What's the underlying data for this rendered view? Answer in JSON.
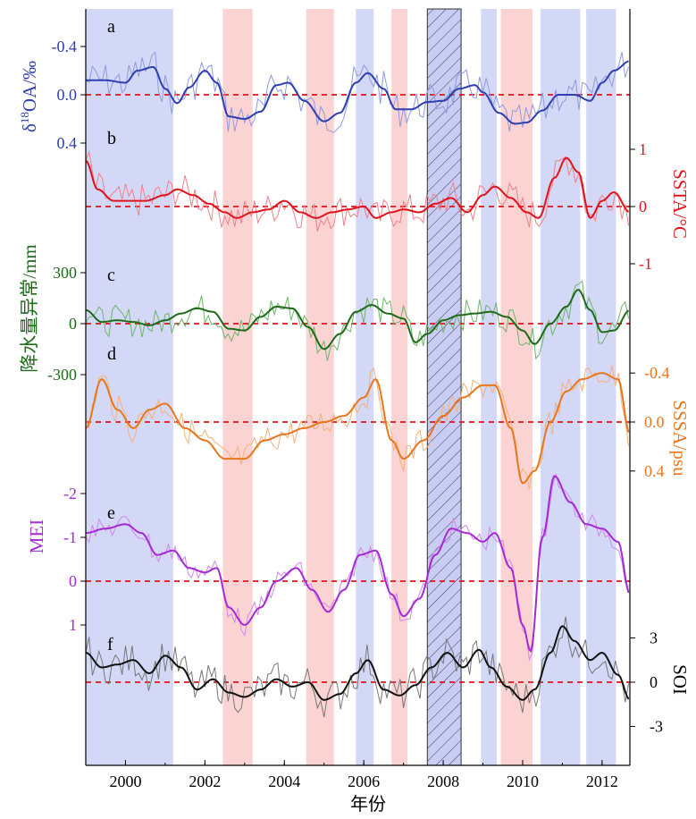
{
  "chart_data": {
    "type": "line",
    "xlabel": "年份",
    "xlim": [
      1999.0,
      2012.7
    ],
    "xticks": [
      "2000",
      "2002",
      "2004",
      "2006",
      "2008",
      "2010",
      "2012"
    ],
    "shading": {
      "blue": [
        [
          1999.0,
          2001.2
        ],
        [
          2005.8,
          2006.25
        ],
        [
          2008.95,
          2009.35
        ],
        [
          2010.45,
          2011.45
        ],
        [
          2011.6,
          2012.35
        ]
      ],
      "red": [
        [
          2002.45,
          2003.2
        ],
        [
          2004.55,
          2005.25
        ],
        [
          2006.7,
          2007.1
        ],
        [
          2009.45,
          2010.25
        ]
      ],
      "hatched": [
        [
          2007.6,
          2008.45
        ]
      ]
    },
    "panels": [
      {
        "label": "a",
        "ylabel_main": "δ",
        "ylabel_sup": "18",
        "ylabel_rest": "OA/‰",
        "axis_side": "left",
        "inverted": true,
        "ticks": [
          "-0.4",
          "0.0",
          "0.4"
        ],
        "tick_values": [
          -0.4,
          0.0,
          0.4
        ],
        "range": [
          -0.55,
          0.5
        ],
        "color": "#2d3fb2",
        "light": "#8f9ae0",
        "smooth": [
          [
            1999.0,
            -0.12
          ],
          [
            1999.5,
            -0.12
          ],
          [
            2000.0,
            -0.1
          ],
          [
            2000.3,
            -0.2
          ],
          [
            2000.7,
            -0.23
          ],
          [
            2001.0,
            -0.05
          ],
          [
            2001.3,
            0.07
          ],
          [
            2001.6,
            -0.06
          ],
          [
            2002.0,
            -0.2
          ],
          [
            2002.3,
            -0.1
          ],
          [
            2002.6,
            0.18
          ],
          [
            2003.0,
            0.2
          ],
          [
            2003.4,
            0.14
          ],
          [
            2003.8,
            -0.08
          ],
          [
            2004.1,
            -0.1
          ],
          [
            2004.5,
            0.05
          ],
          [
            2005.0,
            0.22
          ],
          [
            2005.4,
            0.15
          ],
          [
            2005.8,
            -0.1
          ],
          [
            2006.1,
            -0.18
          ],
          [
            2006.5,
            -0.05
          ],
          [
            2006.8,
            0.12
          ],
          [
            2007.2,
            0.12
          ],
          [
            2007.6,
            0.06
          ],
          [
            2008.0,
            0.05
          ],
          [
            2008.4,
            -0.05
          ],
          [
            2008.8,
            -0.08
          ],
          [
            2009.0,
            -0.02
          ],
          [
            2009.4,
            0.15
          ],
          [
            2009.8,
            0.24
          ],
          [
            2010.1,
            0.23
          ],
          [
            2010.5,
            0.13
          ],
          [
            2010.9,
            0.0
          ],
          [
            2011.3,
            0.0
          ],
          [
            2011.7,
            0.05
          ],
          [
            2012.0,
            -0.1
          ],
          [
            2012.3,
            -0.2
          ],
          [
            2012.7,
            -0.28
          ]
        ],
        "raw_amp": 0.15
      },
      {
        "label": "b",
        "ylabel_main": "SSTA/°C",
        "axis_side": "right",
        "inverted": false,
        "ticks": [
          "1",
          "0",
          "-1"
        ],
        "tick_values": [
          1,
          0,
          -1
        ],
        "range": [
          -1.35,
          1.25
        ],
        "color": "#e0141b",
        "light": "#f0808a",
        "smooth": [
          [
            1999.0,
            0.8
          ],
          [
            1999.3,
            0.3
          ],
          [
            1999.7,
            0.1
          ],
          [
            2000.1,
            0.1
          ],
          [
            2000.5,
            0.1
          ],
          [
            2001.0,
            0.2
          ],
          [
            2001.3,
            0.3
          ],
          [
            2001.7,
            0.2
          ],
          [
            2002.1,
            0.05
          ],
          [
            2002.5,
            -0.1
          ],
          [
            2002.8,
            -0.2
          ],
          [
            2003.2,
            -0.1
          ],
          [
            2003.6,
            -0.05
          ],
          [
            2004.0,
            0.1
          ],
          [
            2004.4,
            -0.1
          ],
          [
            2004.8,
            -0.2
          ],
          [
            2005.2,
            -0.1
          ],
          [
            2005.6,
            -0.05
          ],
          [
            2006.0,
            0.0
          ],
          [
            2006.3,
            -0.2
          ],
          [
            2006.7,
            -0.1
          ],
          [
            2007.0,
            -0.05
          ],
          [
            2007.4,
            -0.1
          ],
          [
            2007.8,
            0.05
          ],
          [
            2008.2,
            0.15
          ],
          [
            2008.6,
            -0.1
          ],
          [
            2009.0,
            0.2
          ],
          [
            2009.3,
            0.35
          ],
          [
            2009.7,
            0.15
          ],
          [
            2010.1,
            -0.1
          ],
          [
            2010.4,
            -0.2
          ],
          [
            2010.8,
            0.5
          ],
          [
            2011.1,
            0.85
          ],
          [
            2011.4,
            0.6
          ],
          [
            2011.7,
            -0.2
          ],
          [
            2012.0,
            0.1
          ],
          [
            2012.3,
            0.25
          ],
          [
            2012.7,
            -0.1
          ]
        ],
        "raw_amp": 0.3
      },
      {
        "label": "c",
        "ylabel_main": "降水量异常/mm",
        "axis_side": "left",
        "inverted": false,
        "ticks": [
          "300",
          "0",
          "-300"
        ],
        "tick_values": [
          300,
          0,
          -300
        ],
        "range": [
          -330,
          330
        ],
        "color": "#1e6b1a",
        "light": "#6fb46a",
        "smooth": [
          [
            1999.0,
            80
          ],
          [
            1999.4,
            10
          ],
          [
            1999.8,
            20
          ],
          [
            2000.2,
            10
          ],
          [
            2000.6,
            -10
          ],
          [
            2001.0,
            20
          ],
          [
            2001.4,
            60
          ],
          [
            2001.8,
            90
          ],
          [
            2002.2,
            70
          ],
          [
            2002.6,
            -30
          ],
          [
            2003.0,
            -40
          ],
          [
            2003.4,
            40
          ],
          [
            2003.8,
            100
          ],
          [
            2004.2,
            90
          ],
          [
            2004.6,
            -20
          ],
          [
            2005.0,
            -150
          ],
          [
            2005.4,
            -60
          ],
          [
            2005.8,
            70
          ],
          [
            2006.2,
            110
          ],
          [
            2006.6,
            60
          ],
          [
            2007.0,
            30
          ],
          [
            2007.3,
            -110
          ],
          [
            2007.6,
            -60
          ],
          [
            2008.0,
            20
          ],
          [
            2008.4,
            50
          ],
          [
            2008.8,
            60
          ],
          [
            2009.2,
            70
          ],
          [
            2009.6,
            40
          ],
          [
            2010.0,
            -40
          ],
          [
            2010.3,
            -120
          ],
          [
            2010.7,
            0
          ],
          [
            2011.1,
            100
          ],
          [
            2011.4,
            200
          ],
          [
            2011.7,
            80
          ],
          [
            2012.0,
            -50
          ],
          [
            2012.3,
            -40
          ],
          [
            2012.7,
            80
          ]
        ],
        "raw_amp": 90
      },
      {
        "label": "d",
        "ylabel_main": "SSSA/psu",
        "axis_side": "right",
        "inverted": true,
        "ticks": [
          "-0.4",
          "0.0",
          "0.4"
        ],
        "tick_values": [
          -0.4,
          0.0,
          0.4
        ],
        "range": [
          -0.58,
          0.52
        ],
        "color": "#e8761e",
        "light": "#f3b27a",
        "smooth": [
          [
            1999.0,
            0.05
          ],
          [
            1999.4,
            -0.35
          ],
          [
            1999.8,
            -0.1
          ],
          [
            2000.2,
            0.05
          ],
          [
            2000.6,
            -0.1
          ],
          [
            2001.0,
            -0.15
          ],
          [
            2001.5,
            0.05
          ],
          [
            2002.0,
            0.15
          ],
          [
            2002.5,
            0.3
          ],
          [
            2003.0,
            0.3
          ],
          [
            2003.5,
            0.15
          ],
          [
            2004.0,
            0.1
          ],
          [
            2004.5,
            0.05
          ],
          [
            2005.0,
            0.0
          ],
          [
            2005.5,
            -0.05
          ],
          [
            2006.0,
            -0.2
          ],
          [
            2006.3,
            -0.35
          ],
          [
            2006.7,
            0.15
          ],
          [
            2007.0,
            0.3
          ],
          [
            2007.5,
            0.15
          ],
          [
            2008.0,
            -0.05
          ],
          [
            2008.5,
            -0.2
          ],
          [
            2009.0,
            -0.3
          ],
          [
            2009.3,
            -0.3
          ],
          [
            2009.7,
            0.05
          ],
          [
            2010.0,
            0.5
          ],
          [
            2010.3,
            0.4
          ],
          [
            2010.7,
            0.0
          ],
          [
            2011.1,
            -0.25
          ],
          [
            2011.5,
            -0.35
          ],
          [
            2012.0,
            -0.4
          ],
          [
            2012.4,
            -0.35
          ],
          [
            2012.7,
            0.1
          ]
        ],
        "raw_amp": 0.12
      },
      {
        "label": "e",
        "ylabel_main": "MEI",
        "axis_side": "left",
        "inverted": true,
        "ticks": [
          "-2",
          "-1",
          "0",
          "1"
        ],
        "tick_values": [
          -2,
          -1,
          0,
          1
        ],
        "range": [
          -2.3,
          1.4
        ],
        "color": "#a52ad4",
        "light": "#d088e8",
        "smooth": [
          [
            1999.0,
            -1.1
          ],
          [
            1999.5,
            -1.2
          ],
          [
            2000.0,
            -1.3
          ],
          [
            2000.4,
            -1.1
          ],
          [
            2000.8,
            -0.6
          ],
          [
            2001.2,
            -0.7
          ],
          [
            2001.6,
            -0.3
          ],
          [
            2002.0,
            -0.2
          ],
          [
            2002.3,
            -0.3
          ],
          [
            2002.6,
            0.6
          ],
          [
            2003.0,
            1.0
          ],
          [
            2003.4,
            0.6
          ],
          [
            2003.8,
            0.0
          ],
          [
            2004.3,
            -0.3
          ],
          [
            2004.7,
            0.2
          ],
          [
            2005.1,
            0.7
          ],
          [
            2005.5,
            0.2
          ],
          [
            2005.9,
            -0.6
          ],
          [
            2006.3,
            -0.7
          ],
          [
            2006.7,
            0.3
          ],
          [
            2007.0,
            0.8
          ],
          [
            2007.4,
            0.4
          ],
          [
            2007.8,
            -0.6
          ],
          [
            2008.2,
            -1.2
          ],
          [
            2008.6,
            -1.1
          ],
          [
            2009.0,
            -0.9
          ],
          [
            2009.3,
            -1.1
          ],
          [
            2009.7,
            -0.3
          ],
          [
            2010.0,
            1.0
          ],
          [
            2010.2,
            1.6
          ],
          [
            2010.5,
            -1.0
          ],
          [
            2010.8,
            -2.4
          ],
          [
            2011.2,
            -1.8
          ],
          [
            2011.6,
            -1.3
          ],
          [
            2012.0,
            -1.2
          ],
          [
            2012.4,
            -0.9
          ],
          [
            2012.7,
            0.3
          ]
        ],
        "raw_amp": 0.25
      },
      {
        "label": "f",
        "ylabel_main": "SOI",
        "axis_side": "right",
        "inverted": false,
        "ticks": [
          "3",
          "0",
          "-3"
        ],
        "tick_values": [
          3,
          0,
          -3
        ],
        "range": [
          -5.5,
          5.2
        ],
        "color": "#111111",
        "light": "#777777",
        "smooth": [
          [
            1999.0,
            2.0
          ],
          [
            1999.4,
            1.0
          ],
          [
            1999.8,
            1.2
          ],
          [
            2000.2,
            1.5
          ],
          [
            2000.6,
            0.6
          ],
          [
            2001.0,
            1.8
          ],
          [
            2001.4,
            1.0
          ],
          [
            2001.8,
            -0.5
          ],
          [
            2002.2,
            0.2
          ],
          [
            2002.6,
            -0.7
          ],
          [
            2003.0,
            -1.0
          ],
          [
            2003.4,
            -0.5
          ],
          [
            2003.8,
            0.2
          ],
          [
            2004.2,
            -0.3
          ],
          [
            2004.6,
            0.0
          ],
          [
            2005.0,
            -1.2
          ],
          [
            2005.4,
            -0.8
          ],
          [
            2005.8,
            0.6
          ],
          [
            2006.1,
            1.5
          ],
          [
            2006.5,
            -0.5
          ],
          [
            2006.9,
            -0.9
          ],
          [
            2007.3,
            -0.2
          ],
          [
            2007.7,
            1.0
          ],
          [
            2008.1,
            2.0
          ],
          [
            2008.5,
            1.0
          ],
          [
            2008.9,
            2.2
          ],
          [
            2009.2,
            1.0
          ],
          [
            2009.6,
            -0.3
          ],
          [
            2010.0,
            -1.2
          ],
          [
            2010.3,
            -0.5
          ],
          [
            2010.7,
            2.0
          ],
          [
            2011.0,
            3.8
          ],
          [
            2011.3,
            2.8
          ],
          [
            2011.7,
            1.5
          ],
          [
            2012.0,
            2.0
          ],
          [
            2012.4,
            0.5
          ],
          [
            2012.7,
            -1.2
          ]
        ],
        "raw_amp": 1.2
      }
    ]
  }
}
